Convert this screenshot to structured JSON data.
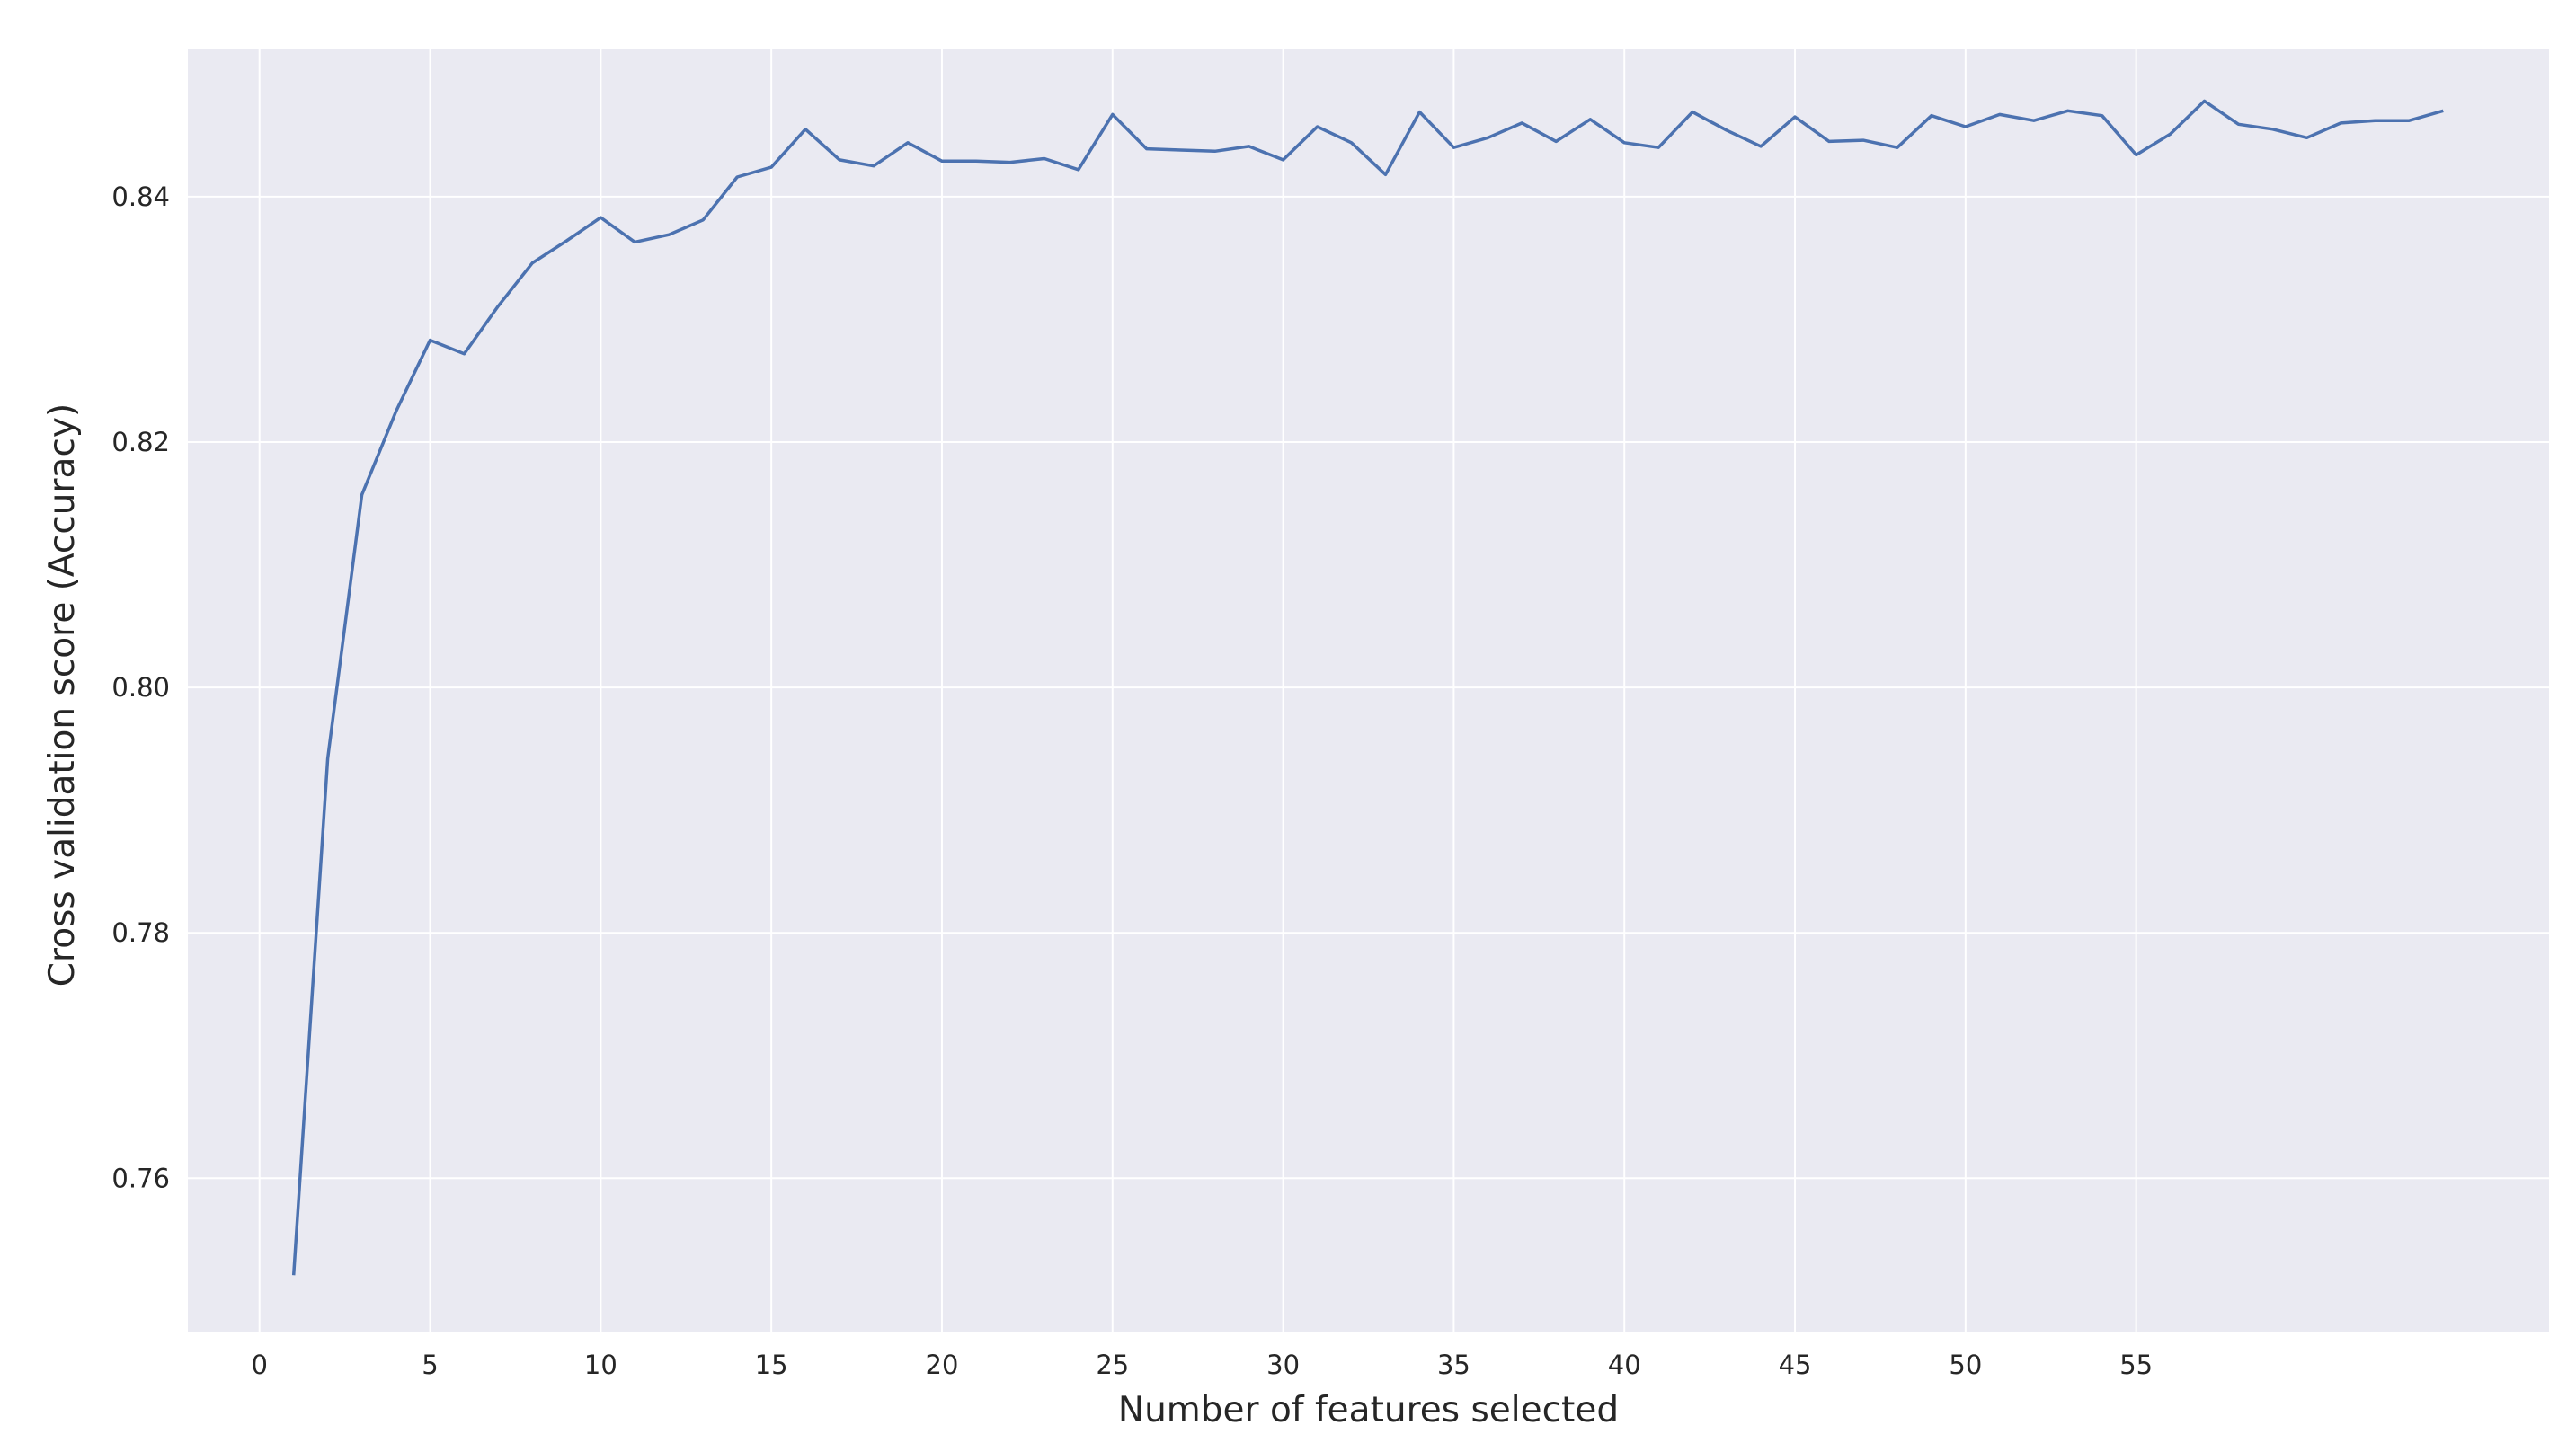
{
  "chart_data": {
    "type": "line",
    "title": "",
    "xlabel": "Number of features selected",
    "ylabel": "Cross validation score (Accuracy)",
    "xlim": [
      -2.1,
      67.1
    ],
    "ylim": [
      0.7475,
      0.852
    ],
    "xticks": [
      0,
      5,
      10,
      15,
      20,
      25,
      30,
      35,
      40,
      45,
      50,
      55
    ],
    "xtick_labels": [
      "0",
      "5",
      "10",
      "15",
      "20",
      "25",
      "30",
      "35",
      "40",
      "45",
      "50",
      "55"
    ],
    "yticks": [
      0.76,
      0.78,
      0.8,
      0.82,
      0.84
    ],
    "ytick_labels": [
      "0.76",
      "0.78",
      "0.80",
      "0.82",
      "0.84"
    ],
    "grid": true,
    "colors": {
      "background": "#eaeaf2",
      "grid": "#ffffff",
      "line": "#4c72b0",
      "text": "#262626"
    },
    "series": [
      {
        "x": [
          1,
          2,
          3,
          4,
          5,
          6,
          7,
          8,
          9,
          10,
          11,
          12,
          13,
          14,
          15,
          16,
          17,
          18,
          19,
          20,
          21,
          22,
          23,
          24,
          25,
          26,
          27,
          28,
          29,
          30,
          31,
          32,
          33,
          34,
          35,
          36,
          37,
          38,
          39,
          40,
          41,
          42,
          43,
          44,
          45,
          46,
          47,
          48,
          49,
          50,
          51,
          52,
          53,
          54,
          55,
          56,
          57,
          58,
          59,
          60,
          61,
          62,
          63,
          64
        ],
        "values": [
          0.7521,
          0.7942,
          0.8157,
          0.8225,
          0.8283,
          0.8272,
          0.8311,
          0.8346,
          0.8364,
          0.8383,
          0.8363,
          0.8369,
          0.8381,
          0.8416,
          0.8424,
          0.8455,
          0.843,
          0.8425,
          0.8444,
          0.8429,
          0.8429,
          0.8428,
          0.8431,
          0.8422,
          0.8467,
          0.8439,
          0.8438,
          0.8437,
          0.8441,
          0.843,
          0.8457,
          0.8444,
          0.8418,
          0.8469,
          0.844,
          0.8448,
          0.846,
          0.8445,
          0.8463,
          0.8444,
          0.844,
          0.8469,
          0.8454,
          0.8441,
          0.8465,
          0.8445,
          0.8446,
          0.844,
          0.8466,
          0.8457,
          0.8467,
          0.8462,
          0.847,
          0.8466,
          0.8434,
          0.8451,
          0.8478,
          0.8459,
          0.8455,
          0.8448,
          0.846,
          0.8462,
          0.8462,
          0.847
        ]
      }
    ]
  }
}
